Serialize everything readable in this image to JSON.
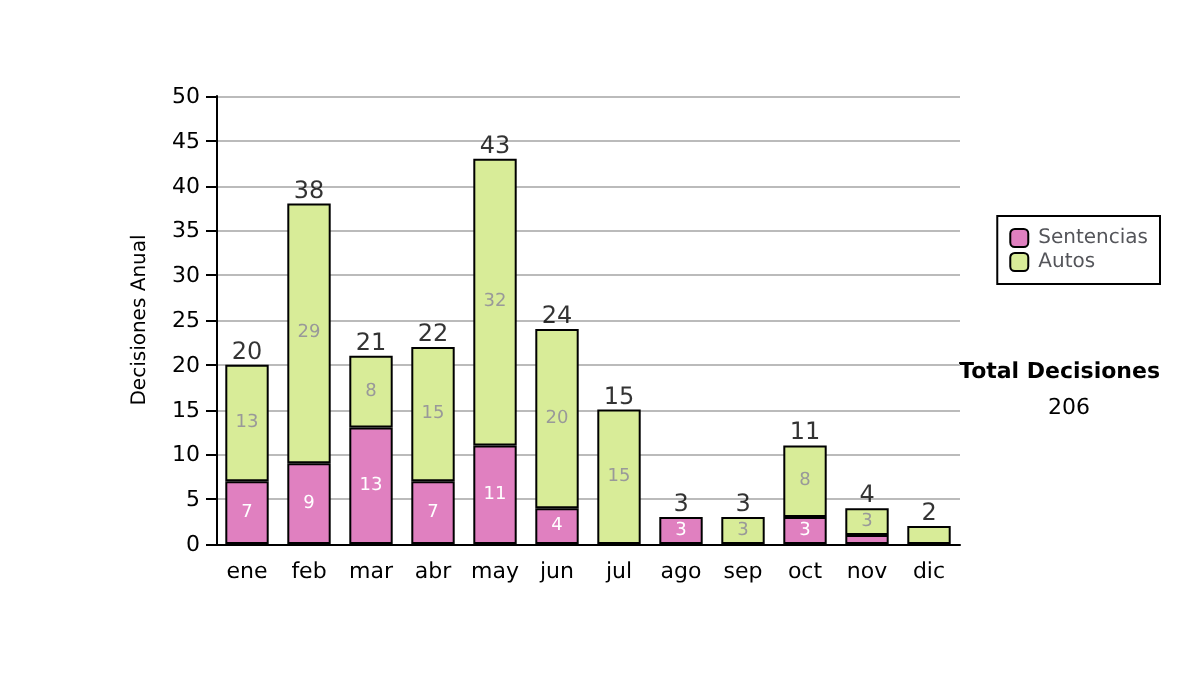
{
  "chart_data": {
    "type": "bar",
    "stacked": true,
    "ylabel": "Decisiones Anual",
    "categories": [
      "ene",
      "feb",
      "mar",
      "abr",
      "may",
      "jun",
      "jul",
      "ago",
      "sep",
      "oct",
      "nov",
      "dic"
    ],
    "series": [
      {
        "name": "Sentencias",
        "color": "#e080c0",
        "values": [
          7,
          9,
          13,
          7,
          11,
          4,
          0,
          3,
          0,
          3,
          1,
          0
        ],
        "value_labels": [
          "7",
          "9",
          "13",
          "7",
          "11",
          "4",
          null,
          "3",
          null,
          "3",
          null,
          null
        ]
      },
      {
        "name": "Autos",
        "color": "#d8ec98",
        "values": [
          13,
          29,
          8,
          15,
          32,
          20,
          15,
          0,
          3,
          8,
          3,
          2
        ],
        "value_labels": [
          "13",
          "29",
          "8",
          "15",
          "32",
          "20",
          "15",
          null,
          "3",
          "8",
          "3",
          null
        ]
      }
    ],
    "totals": [
      "20",
      "38",
      "21",
      "22",
      "43",
      "24",
      "15",
      "3",
      "3",
      "11",
      "4",
      "2"
    ],
    "ylim": [
      0,
      50
    ],
    "yticks": [
      0,
      5,
      10,
      15,
      20,
      25,
      30,
      35,
      40,
      45,
      50
    ],
    "grid": "y",
    "legend": "right",
    "annotations": [
      "Total Decisiones",
      "206"
    ]
  }
}
